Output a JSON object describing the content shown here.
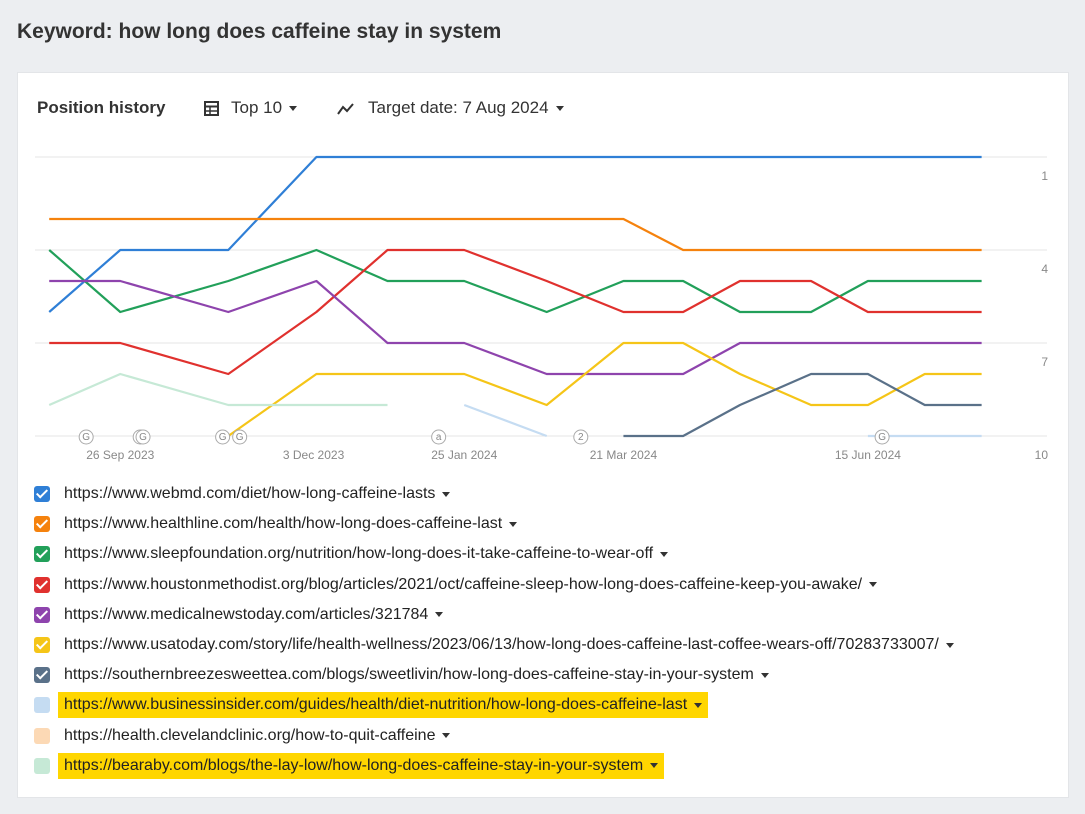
{
  "header": {
    "title": "Keyword: how long does caffeine stay in system"
  },
  "toolbar": {
    "section": "Position history",
    "filter": "Top 10",
    "target_date": "Target date: 7 Aug 2024"
  },
  "chart_data": {
    "type": "line",
    "x": [
      "2023-09-01",
      "2023-09-26",
      "2023-11-03",
      "2023-12-04",
      "2023-12-29",
      "2024-01-25",
      "2024-02-23",
      "2024-03-21",
      "2024-04-11",
      "2024-05-01",
      "2024-05-26",
      "2024-06-15",
      "2024-07-05",
      "2024-07-25"
    ],
    "xlim": [
      "2023-08-27",
      "2024-08-17"
    ],
    "xticks": [
      {
        "value": "2023-09-26",
        "label": "26 Sep 2023"
      },
      {
        "value": "2023-12-03",
        "label": "3 Dec 2023"
      },
      {
        "value": "2024-01-25",
        "label": "25 Jan 2024"
      },
      {
        "value": "2024-03-21",
        "label": "21 Mar 2024"
      },
      {
        "value": "2024-06-15",
        "label": "15 Jun 2024"
      }
    ],
    "ylim": [
      1,
      10
    ],
    "yticks": [
      1,
      4,
      7,
      10
    ],
    "y_inverted": true,
    "grid": true,
    "annotations": [
      {
        "x": "2023-09-14",
        "label": "G"
      },
      {
        "x": "2023-10-03",
        "label": "G"
      },
      {
        "x": "2023-10-04",
        "label": "G"
      },
      {
        "x": "2023-11-01",
        "label": "G"
      },
      {
        "x": "2023-11-07",
        "label": "G"
      },
      {
        "x": "2024-01-16",
        "label": "a"
      },
      {
        "x": "2024-03-06",
        "label": "2"
      },
      {
        "x": "2024-06-20",
        "label": "G"
      }
    ],
    "series": [
      {
        "name": "https://www.webmd.com/diet/how-long-caffeine-lasts",
        "color": "#2f7fd6",
        "checked": true,
        "highlighted": false,
        "values": [
          6,
          4,
          4,
          1,
          1,
          1,
          1,
          1,
          1,
          1,
          1,
          1,
          1,
          1
        ]
      },
      {
        "name": "https://www.healthline.com/health/how-long-does-caffeine-last",
        "color": "#f5820d",
        "checked": true,
        "highlighted": false,
        "values": [
          3,
          3,
          3,
          3,
          3,
          3,
          3,
          3,
          4,
          4,
          4,
          4,
          4,
          4
        ]
      },
      {
        "name": "https://www.sleepfoundation.org/nutrition/how-long-does-it-take-caffeine-to-wear-off",
        "color": "#22a05a",
        "checked": true,
        "highlighted": false,
        "values": [
          4,
          6,
          5,
          4,
          5,
          5,
          6,
          5,
          5,
          6,
          6,
          5,
          5,
          5
        ]
      },
      {
        "name": "https://www.houstonmethodist.org/blog/articles/2021/oct/caffeine-sleep-how-long-does-caffeine-keep-you-awake/",
        "color": "#e0312e",
        "checked": true,
        "highlighted": false,
        "values": [
          7,
          7,
          8,
          6,
          4,
          4,
          5,
          6,
          6,
          5,
          5,
          6,
          6,
          6
        ]
      },
      {
        "name": "https://www.medicalnewstoday.com/articles/321784",
        "color": "#8e44ad",
        "checked": true,
        "highlighted": false,
        "values": [
          5,
          5,
          6,
          5,
          7,
          7,
          8,
          8,
          8,
          7,
          7,
          7,
          7,
          7
        ]
      },
      {
        "name": "https://www.usatoday.com/story/life/health-wellness/2023/06/13/how-long-does-caffeine-last-coffee-wears-off/70283733007/",
        "color": "#f5c518",
        "checked": true,
        "highlighted": false,
        "values": [
          null,
          null,
          10,
          8,
          8,
          8,
          9,
          7,
          7,
          8,
          9,
          9,
          8,
          8
        ]
      },
      {
        "name": "https://southernbreezesweettea.com/blogs/sweetlivin/how-long-does-caffeine-stay-in-your-system",
        "color": "#5a7189",
        "checked": true,
        "highlighted": false,
        "values": [
          null,
          null,
          null,
          null,
          null,
          null,
          null,
          10,
          10,
          9,
          8,
          8,
          9,
          9
        ]
      },
      {
        "name": "https://www.businessinsider.com/guides/health/diet-nutrition/how-long-does-caffeine-last",
        "color": "#c5dcf2",
        "checked": false,
        "highlighted": true,
        "values": [
          null,
          null,
          null,
          null,
          null,
          9,
          10,
          null,
          null,
          null,
          null,
          10,
          10,
          10
        ]
      },
      {
        "name": "https://health.clevelandclinic.org/how-to-quit-caffeine",
        "color": "#fcd9b5",
        "checked": false,
        "highlighted": false,
        "values": [
          null,
          null,
          null,
          null,
          null,
          null,
          null,
          null,
          null,
          null,
          null,
          null,
          null,
          null
        ]
      },
      {
        "name": "https://bearaby.com/blogs/the-lay-low/how-long-does-caffeine-stay-in-your-system",
        "color": "#c6e9d6",
        "checked": false,
        "highlighted": true,
        "values": [
          9,
          8,
          9,
          9,
          9,
          null,
          null,
          null,
          null,
          null,
          null,
          null,
          null,
          null
        ]
      }
    ]
  }
}
